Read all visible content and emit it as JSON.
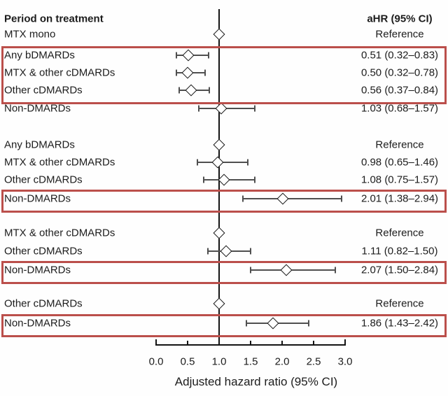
{
  "colors": {
    "highlight_border": "#bb4f4b",
    "axis_line": "#141414",
    "whisker": "#4f4f4f",
    "diamond_fill": "#ffffff"
  },
  "chart_data": {
    "type": "forest",
    "title_left": "Period on treatment",
    "title_right": "aHR (95% CI)",
    "xlabel": "Adjusted hazard ratio (95% CI)",
    "xlim": [
      0.0,
      3.0
    ],
    "x_ticks": [
      0.0,
      0.5,
      1.0,
      1.5,
      2.0,
      2.5,
      3.0
    ],
    "x_tick_labels": [
      "0.0",
      "0.5",
      "1.0",
      "1.5",
      "2.0",
      "2.5",
      "3.0"
    ],
    "reference_line_x": 1.0,
    "grid": false,
    "marker": "open-diamond",
    "groups": [
      {
        "rows": [
          {
            "label": "MTX mono",
            "value_text": "Reference",
            "est": 1.0,
            "ref": true,
            "highlight": false
          },
          {
            "label": "Any bDMARDs",
            "value_text": "0.51 (0.32–0.83)",
            "est": 0.51,
            "lo": 0.32,
            "hi": 0.83,
            "ref": false,
            "highlight": true
          },
          {
            "label": "MTX & other cDMARDs",
            "value_text": "0.50 (0.32–0.78)",
            "est": 0.5,
            "lo": 0.32,
            "hi": 0.78,
            "ref": false,
            "highlight": true
          },
          {
            "label": "Other cDMARDs",
            "value_text": "0.56 (0.37–0.84)",
            "est": 0.56,
            "lo": 0.37,
            "hi": 0.84,
            "ref": false,
            "highlight": true
          },
          {
            "label": "Non-DMARDs",
            "value_text": "1.03 (0.68–1.57)",
            "est": 1.03,
            "lo": 0.68,
            "hi": 1.57,
            "ref": false,
            "highlight": false
          }
        ]
      },
      {
        "rows": [
          {
            "label": "Any bDMARDs",
            "value_text": "Reference",
            "est": 1.0,
            "ref": true,
            "highlight": false
          },
          {
            "label": "MTX & other cDMARDs",
            "value_text": "0.98 (0.65–1.46)",
            "est": 0.98,
            "lo": 0.65,
            "hi": 1.46,
            "ref": false,
            "highlight": false
          },
          {
            "label": "Other cDMARDs",
            "value_text": "1.08 (0.75–1.57)",
            "est": 1.08,
            "lo": 0.75,
            "hi": 1.57,
            "ref": false,
            "highlight": false
          },
          {
            "label": "Non-DMARDs",
            "value_text": "2.01 (1.38–2.94)",
            "est": 2.01,
            "lo": 1.38,
            "hi": 2.94,
            "ref": false,
            "highlight": true
          }
        ]
      },
      {
        "rows": [
          {
            "label": "MTX & other cDMARDs",
            "value_text": "Reference",
            "est": 1.0,
            "ref": true,
            "highlight": false
          },
          {
            "label": "Other cDMARDs",
            "value_text": "1.11 (0.82–1.50)",
            "est": 1.11,
            "lo": 0.82,
            "hi": 1.5,
            "ref": false,
            "highlight": false
          },
          {
            "label": "Non-DMARDs",
            "value_text": "2.07 (1.50–2.84)",
            "est": 2.07,
            "lo": 1.5,
            "hi": 2.84,
            "ref": false,
            "highlight": true
          }
        ]
      },
      {
        "rows": [
          {
            "label": "Other cDMARDs",
            "value_text": "Reference",
            "est": 1.0,
            "ref": true,
            "highlight": false
          },
          {
            "label": "Non-DMARDs",
            "value_text": "1.86 (1.43–2.42)",
            "est": 1.86,
            "lo": 1.43,
            "hi": 2.42,
            "ref": false,
            "highlight": true
          }
        ]
      }
    ]
  }
}
